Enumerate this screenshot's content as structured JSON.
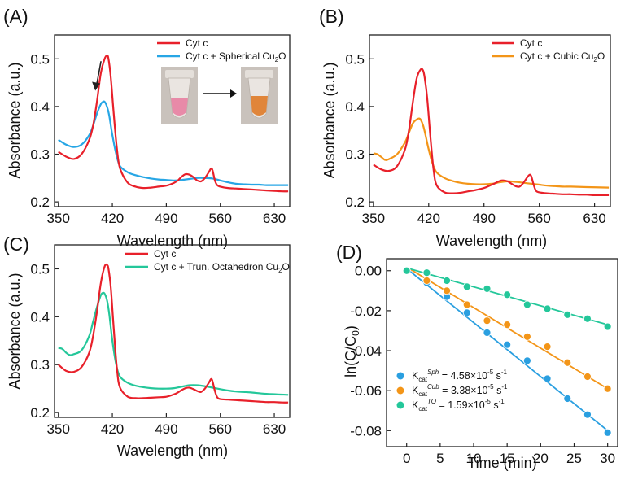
{
  "chart_data": [
    {
      "panel": "(A)",
      "type": "line",
      "xlabel": "Wavelength (nm)",
      "ylabel": "Absorbance (a.u.)",
      "xlim": [
        345,
        650
      ],
      "ylim": [
        0.19,
        0.55
      ],
      "xticks": [
        350,
        420,
        490,
        560,
        630
      ],
      "yticks": [
        0.2,
        0.3,
        0.4,
        0.5
      ],
      "legend": "top-right",
      "inset": "photo of vial before (pink) and after (orange) with arrow",
      "annotation": "downward arrow at Soret peak",
      "series": [
        {
          "name": "Cyt c",
          "color": "#e8202a",
          "legend_label": "Cyt c",
          "x": [
            350,
            360,
            370,
            380,
            390,
            395,
            400,
            405,
            410,
            413,
            415,
            418,
            422,
            426,
            430,
            440,
            450,
            460,
            470,
            480,
            490,
            500,
            505,
            510,
            515,
            520,
            525,
            530,
            535,
            540,
            545,
            548,
            550,
            553,
            556,
            560,
            570,
            580,
            590,
            600,
            610,
            620,
            630,
            640,
            648
          ],
          "y": [
            0.305,
            0.295,
            0.29,
            0.3,
            0.33,
            0.36,
            0.41,
            0.47,
            0.5,
            0.507,
            0.5,
            0.46,
            0.38,
            0.31,
            0.27,
            0.24,
            0.232,
            0.229,
            0.23,
            0.232,
            0.234,
            0.24,
            0.245,
            0.253,
            0.258,
            0.257,
            0.252,
            0.245,
            0.243,
            0.25,
            0.262,
            0.27,
            0.266,
            0.245,
            0.235,
            0.232,
            0.229,
            0.228,
            0.227,
            0.226,
            0.225,
            0.224,
            0.223,
            0.222,
            0.222
          ]
        },
        {
          "name": "Cyt c + Spherical Cu2O",
          "color": "#27a6e5",
          "legend_label": "Cyt c + Spherical Cu",
          "legend_sub": "2",
          "legend_tail": "O",
          "x": [
            350,
            360,
            370,
            380,
            390,
            395,
            400,
            405,
            408,
            410,
            413,
            416,
            420,
            425,
            430,
            440,
            450,
            460,
            470,
            480,
            490,
            500,
            510,
            520,
            530,
            540,
            550,
            560,
            570,
            580,
            590,
            600,
            610,
            620,
            630,
            640,
            648
          ],
          "y": [
            0.33,
            0.32,
            0.315,
            0.32,
            0.34,
            0.36,
            0.385,
            0.405,
            0.41,
            0.41,
            0.4,
            0.38,
            0.34,
            0.3,
            0.275,
            0.262,
            0.256,
            0.252,
            0.249,
            0.247,
            0.246,
            0.245,
            0.246,
            0.248,
            0.25,
            0.25,
            0.249,
            0.245,
            0.241,
            0.238,
            0.237,
            0.236,
            0.236,
            0.235,
            0.235,
            0.235,
            0.235
          ]
        }
      ]
    },
    {
      "panel": "(B)",
      "type": "line",
      "xlabel": "Wavelength (nm)",
      "ylabel": "Absorbance (a.u.)",
      "xlim": [
        345,
        650
      ],
      "ylim": [
        0.19,
        0.55
      ],
      "xticks": [
        350,
        420,
        490,
        560,
        630
      ],
      "yticks": [
        0.2,
        0.3,
        0.4,
        0.5
      ],
      "legend": "top-right",
      "series": [
        {
          "name": "Cyt c",
          "color": "#e8202a",
          "legend_label": "Cyt c",
          "x": [
            350,
            360,
            370,
            380,
            390,
            395,
            400,
            405,
            410,
            413,
            415,
            418,
            422,
            426,
            430,
            440,
            450,
            460,
            470,
            480,
            490,
            500,
            505,
            510,
            515,
            520,
            525,
            530,
            535,
            540,
            545,
            548,
            550,
            553,
            556,
            560,
            570,
            580,
            590,
            600,
            610,
            620,
            630,
            640,
            648
          ],
          "y": [
            0.278,
            0.268,
            0.265,
            0.275,
            0.31,
            0.35,
            0.41,
            0.46,
            0.478,
            0.475,
            0.46,
            0.42,
            0.34,
            0.27,
            0.235,
            0.22,
            0.218,
            0.219,
            0.222,
            0.225,
            0.229,
            0.236,
            0.24,
            0.244,
            0.245,
            0.243,
            0.238,
            0.233,
            0.232,
            0.24,
            0.252,
            0.257,
            0.253,
            0.235,
            0.223,
            0.22,
            0.218,
            0.217,
            0.216,
            0.216,
            0.215,
            0.215,
            0.214,
            0.214,
            0.214
          ]
        },
        {
          "name": "Cyt c + Cubic Cu2O",
          "color": "#f39518",
          "legend_label": "Cyt c + Cubic Cu",
          "legend_sub": "2",
          "legend_tail": "O",
          "x": [
            350,
            355,
            360,
            365,
            370,
            380,
            390,
            395,
            400,
            405,
            408,
            410,
            413,
            416,
            420,
            425,
            430,
            440,
            450,
            460,
            470,
            480,
            490,
            500,
            510,
            520,
            530,
            540,
            550,
            560,
            570,
            580,
            590,
            600,
            620,
            648
          ],
          "y": [
            0.302,
            0.3,
            0.294,
            0.288,
            0.29,
            0.3,
            0.325,
            0.345,
            0.365,
            0.373,
            0.375,
            0.372,
            0.36,
            0.34,
            0.31,
            0.28,
            0.262,
            0.25,
            0.244,
            0.24,
            0.238,
            0.237,
            0.237,
            0.238,
            0.241,
            0.243,
            0.242,
            0.24,
            0.238,
            0.236,
            0.234,
            0.233,
            0.232,
            0.232,
            0.231,
            0.23
          ]
        }
      ]
    },
    {
      "panel": "(C)",
      "type": "line",
      "xlabel": "Wavelength (nm)",
      "ylabel": "Absorbance (a.u.)",
      "xlim": [
        345,
        650
      ],
      "ylim": [
        0.19,
        0.55
      ],
      "xticks": [
        350,
        420,
        490,
        560,
        630
      ],
      "yticks": [
        0.2,
        0.3,
        0.4,
        0.5
      ],
      "legend": "top-right",
      "series": [
        {
          "name": "Cyt c",
          "color": "#e8202a",
          "legend_label": "Cyt c",
          "x": [
            350,
            360,
            370,
            380,
            390,
            395,
            400,
            405,
            410,
            413,
            415,
            418,
            422,
            426,
            430,
            440,
            450,
            460,
            470,
            480,
            490,
            500,
            505,
            510,
            515,
            520,
            525,
            530,
            535,
            540,
            545,
            548,
            550,
            553,
            556,
            560,
            570,
            580,
            590,
            600,
            610,
            620,
            630,
            640,
            648
          ],
          "y": [
            0.3,
            0.287,
            0.285,
            0.295,
            0.325,
            0.36,
            0.41,
            0.47,
            0.505,
            0.508,
            0.5,
            0.46,
            0.37,
            0.29,
            0.252,
            0.233,
            0.23,
            0.23,
            0.231,
            0.232,
            0.233,
            0.238,
            0.242,
            0.247,
            0.251,
            0.252,
            0.249,
            0.245,
            0.243,
            0.25,
            0.262,
            0.27,
            0.265,
            0.245,
            0.232,
            0.228,
            0.227,
            0.226,
            0.225,
            0.224,
            0.223,
            0.222,
            0.222,
            0.221,
            0.221
          ]
        },
        {
          "name": "Cyt c + Trun. Octahedron Cu2O",
          "color": "#24c79a",
          "legend_label": "Cyt c + Trun. Octahedron Cu",
          "legend_sub": "2",
          "legend_tail": "O",
          "x": [
            350,
            355,
            360,
            365,
            370,
            380,
            390,
            395,
            400,
            405,
            408,
            410,
            413,
            416,
            420,
            425,
            430,
            440,
            450,
            460,
            470,
            480,
            490,
            500,
            510,
            520,
            530,
            540,
            550,
            560,
            570,
            580,
            590,
            600,
            620,
            648
          ],
          "y": [
            0.335,
            0.333,
            0.325,
            0.32,
            0.322,
            0.33,
            0.36,
            0.39,
            0.42,
            0.445,
            0.45,
            0.448,
            0.435,
            0.405,
            0.35,
            0.3,
            0.275,
            0.262,
            0.256,
            0.253,
            0.251,
            0.25,
            0.25,
            0.251,
            0.254,
            0.257,
            0.257,
            0.255,
            0.252,
            0.249,
            0.246,
            0.244,
            0.243,
            0.242,
            0.239,
            0.237
          ]
        }
      ]
    },
    {
      "panel": "(D)",
      "type": "scatter",
      "xlabel": "Time (min)",
      "ylabel": "ln(C/C0)",
      "ylabel_main": "ln(C/C",
      "ylabel_sub": "0",
      "ylabel_tail": ")",
      "xlim": [
        -3,
        31.5
      ],
      "ylim": [
        -0.088,
        0.006
      ],
      "xticks": [
        0,
        5,
        10,
        15,
        20,
        25,
        30
      ],
      "yticks": [
        0.0,
        -0.02,
        -0.04,
        -0.06,
        -0.08
      ],
      "ytick_labels": [
        "0.00",
        "-0.02",
        "-0.04",
        "-0.06",
        "-0.08"
      ],
      "legend": "bottom-left",
      "series": [
        {
          "name": "K_cat^Sph",
          "color": "#2a9fe0",
          "legend_k": "K",
          "legend_sub": "cat",
          "legend_sup": "Sph",
          "legend_value": " = 4.58×10",
          "legend_exp": "-5",
          "legend_unit": " s",
          "legend_unit_exp": "-1",
          "x": [
            0,
            3,
            6,
            9,
            12,
            15,
            18,
            21,
            24,
            27,
            30
          ],
          "y": [
            0.0,
            -0.006,
            -0.013,
            -0.021,
            -0.031,
            -0.037,
            -0.045,
            -0.054,
            -0.064,
            -0.072,
            -0.081
          ],
          "fit": [
            [
              0.4,
              0.0
            ],
            [
              30,
              -0.08
            ]
          ]
        },
        {
          "name": "K_cat^Cub",
          "color": "#f39518",
          "legend_k": "K",
          "legend_sub": "cat",
          "legend_sup": "Cub",
          "legend_value": " = 3.38×10",
          "legend_exp": "-5",
          "legend_unit": " s",
          "legend_unit_exp": "-1",
          "x": [
            0,
            3,
            6,
            9,
            12,
            15,
            18,
            21,
            24,
            27,
            30
          ],
          "y": [
            0.0,
            -0.005,
            -0.01,
            -0.017,
            -0.025,
            -0.027,
            -0.033,
            -0.038,
            -0.046,
            -0.053,
            -0.059
          ],
          "fit": [
            [
              0.4,
              0.001
            ],
            [
              30,
              -0.059
            ]
          ]
        },
        {
          "name": "K_cat^TO",
          "color": "#24c79a",
          "legend_k": "K",
          "legend_sub": "cat",
          "legend_sup": "TO",
          "legend_value": " = 1.59×10",
          "legend_exp": "-5",
          "legend_unit": " s",
          "legend_unit_exp": "-1",
          "x": [
            0,
            3,
            6,
            9,
            12,
            15,
            18,
            21,
            24,
            27,
            30
          ],
          "y": [
            0.0,
            -0.001,
            -0.005,
            -0.008,
            -0.009,
            -0.012,
            -0.017,
            -0.019,
            -0.022,
            -0.024,
            -0.028
          ],
          "fit": [
            [
              0.4,
              0.001
            ],
            [
              30,
              -0.027
            ]
          ]
        }
      ]
    }
  ]
}
